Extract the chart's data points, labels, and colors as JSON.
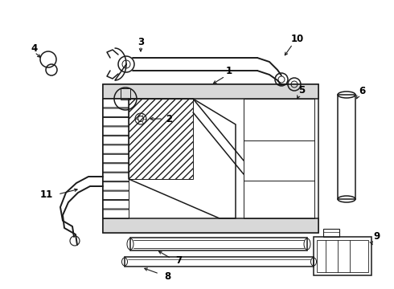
{
  "bg_color": "#ffffff",
  "line_color": "#1a1a1a",
  "figsize": [
    4.9,
    3.6
  ],
  "dpi": 100,
  "label_fontsize": 8.5,
  "label_fontweight": "bold"
}
